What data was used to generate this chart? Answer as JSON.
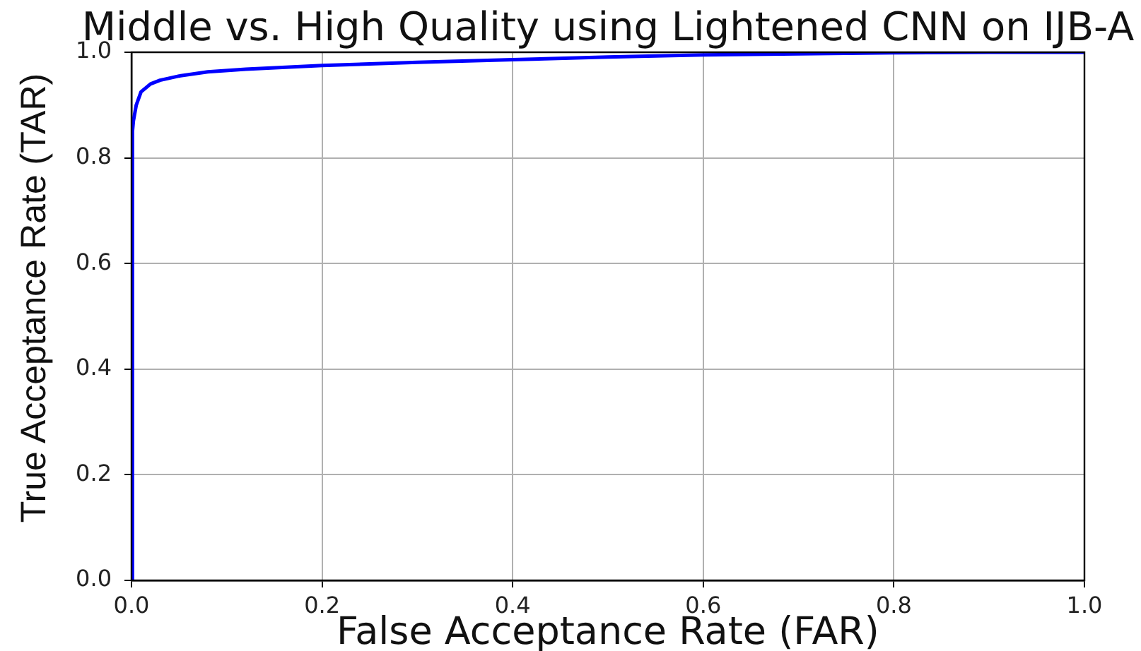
{
  "chart_data": {
    "type": "line",
    "title": "Middle vs. High Quality using Lightened CNN on IJB-A",
    "xlabel": "False Acceptance Rate (FAR)",
    "ylabel": "True Acceptance Rate (TAR)",
    "x": [
      0,
      0.001,
      0.002,
      0.005,
      0.01,
      0.02,
      0.03,
      0.05,
      0.08,
      0.12,
      0.2,
      0.3,
      0.4,
      0.5,
      0.6,
      0.7,
      0.8,
      0.9,
      1.0
    ],
    "series": [
      {
        "color": "#0000ff",
        "values": [
          0,
          0.85,
          0.87,
          0.9,
          0.925,
          0.94,
          0.947,
          0.955,
          0.963,
          0.968,
          0.975,
          0.981,
          0.986,
          0.991,
          0.995,
          0.997,
          0.999,
          1.0,
          1.0
        ]
      }
    ],
    "xlim": [
      0,
      1
    ],
    "ylim": [
      0,
      1
    ],
    "xticks": [
      {
        "value": 0,
        "label": "0.0"
      },
      0.2,
      0.4,
      0.6,
      0.8,
      {
        "value": 1,
        "label": "1.0"
      }
    ],
    "yticks": [
      {
        "value": 0,
        "label": "0.0"
      },
      0.2,
      0.4,
      0.6,
      0.8,
      {
        "value": 1,
        "label": "1.0"
      }
    ],
    "grid": true,
    "legend": false,
    "marker": "none",
    "line_style": "solid"
  }
}
